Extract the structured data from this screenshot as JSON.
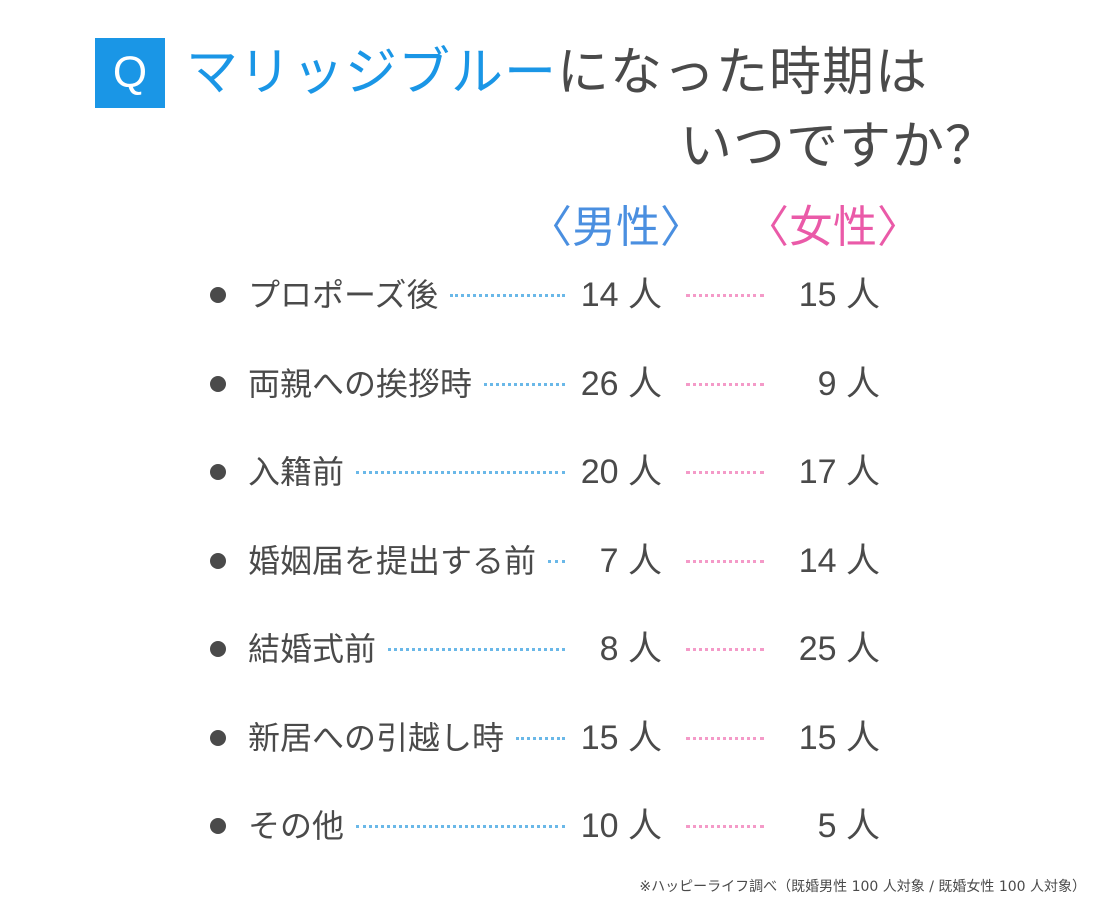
{
  "header": {
    "q_badge": "Q",
    "title_highlight": "マリッジブルー",
    "title_rest": "になった時期は",
    "title_line2": "いつですか？",
    "accent_color": "#1a96e6"
  },
  "columns": {
    "male": "〈男性〉",
    "female": "〈女性〉",
    "male_color": "#4a8fe0",
    "female_color": "#ea5aa8"
  },
  "chart_data": {
    "type": "table",
    "categories": [
      "プロポーズ後",
      "両親への挨拶時",
      "入籍前",
      "婚姻届を提出する前",
      "結婚式前",
      "新居への引越し時",
      "その他"
    ],
    "unit": "人",
    "series": [
      {
        "name": "〈男性〉",
        "values": [
          14,
          26,
          20,
          7,
          8,
          15,
          10
        ]
      },
      {
        "name": "〈女性〉",
        "values": [
          15,
          9,
          17,
          14,
          25,
          15,
          5
        ]
      }
    ]
  },
  "rows": [
    {
      "label": "プロポーズ後",
      "male": "14 人",
      "female": "15 人"
    },
    {
      "label": "両親への挨拶時",
      "male": "26 人",
      "female": "9 人"
    },
    {
      "label": "入籍前",
      "male": "20 人",
      "female": "17 人"
    },
    {
      "label": "婚姻届を提出する前",
      "male": "7 人",
      "female": "14 人"
    },
    {
      "label": "結婚式前",
      "male": "8 人",
      "female": "25 人"
    },
    {
      "label": "新居への引越し時",
      "male": "15 人",
      "female": "15 人"
    },
    {
      "label": "その他",
      "male": "10 人",
      "female": "5 人"
    }
  ],
  "footnote": "※ハッピーライフ調べ（既婚男性 100 人対象 / 既婚女性 100 人対象）"
}
